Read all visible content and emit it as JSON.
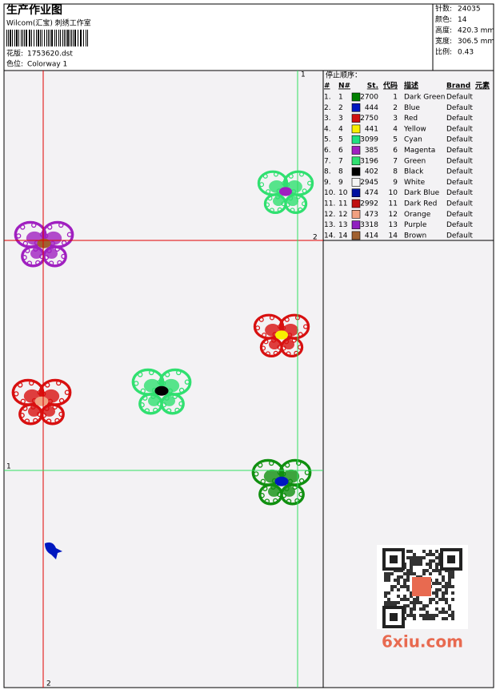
{
  "header": {
    "title": "生产作业图",
    "company": "Wilcom(汇宝) 刺绣工作室",
    "design_label": "花版:",
    "design": "1753620.dst",
    "colorway_label": "色位:",
    "colorway": "Colorway 1"
  },
  "info": [
    {
      "label": "针数:",
      "value": "24035"
    },
    {
      "label": "颜色:",
      "value": "14"
    },
    {
      "label": "高度:",
      "value": "420.3 mm"
    },
    {
      "label": "宽度:",
      "value": "306.5 mm"
    },
    {
      "label": "比例:",
      "value": "0.43"
    }
  ],
  "stop_sequence": {
    "title": "停止顺序：",
    "columns": [
      "#",
      "N#",
      "St.",
      "代码",
      "描述",
      "Brand",
      "元素"
    ],
    "rows": [
      {
        "num": "1.",
        "n": "1",
        "color": "#008000",
        "st": "2700",
        "code": "1",
        "name": "Dark Green",
        "brand": "Default"
      },
      {
        "num": "2.",
        "n": "2",
        "color": "#0018c0",
        "st": "444",
        "code": "2",
        "name": "Blue",
        "brand": "Default"
      },
      {
        "num": "3.",
        "n": "3",
        "color": "#d01010",
        "st": "2750",
        "code": "3",
        "name": "Red",
        "brand": "Default"
      },
      {
        "num": "4.",
        "n": "4",
        "color": "#f8f000",
        "st": "441",
        "code": "4",
        "name": "Yellow",
        "brand": "Default"
      },
      {
        "num": "5.",
        "n": "5",
        "color": "#20e080",
        "st": "3099",
        "code": "5",
        "name": "Cyan",
        "brand": "Default"
      },
      {
        "num": "6.",
        "n": "6",
        "color": "#a020c0",
        "st": "385",
        "code": "6",
        "name": "Magenta",
        "brand": "Default"
      },
      {
        "num": "7.",
        "n": "7",
        "color": "#30e070",
        "st": "3196",
        "code": "7",
        "name": "Green",
        "brand": "Default"
      },
      {
        "num": "8.",
        "n": "8",
        "color": "#000000",
        "st": "402",
        "code": "8",
        "name": "Black",
        "brand": "Default"
      },
      {
        "num": "9.",
        "n": "9",
        "color": "#f4f4f4",
        "st": "2945",
        "code": "9",
        "name": "White",
        "brand": "Default"
      },
      {
        "num": "10.",
        "n": "10",
        "color": "#0010a0",
        "st": "474",
        "code": "10",
        "name": "Dark Blue",
        "brand": "Default"
      },
      {
        "num": "11.",
        "n": "11",
        "color": "#c01010",
        "st": "2992",
        "code": "11",
        "name": "Dark Red",
        "brand": "Default"
      },
      {
        "num": "12.",
        "n": "12",
        "color": "#f0a080",
        "st": "473",
        "code": "12",
        "name": "Orange",
        "brand": "Default"
      },
      {
        "num": "13.",
        "n": "13",
        "color": "#9020c0",
        "st": "3318",
        "code": "13",
        "name": "Purple",
        "brand": "Default"
      },
      {
        "num": "14.",
        "n": "14",
        "color": "#a06030",
        "st": "414",
        "code": "14",
        "name": "Brown",
        "brand": "Default"
      }
    ]
  },
  "guides": {
    "red_vertical": "2",
    "red_horizontal": "2",
    "green_vertical": "1",
    "green_horizontal": "1"
  },
  "watermark": "6xiu.com"
}
